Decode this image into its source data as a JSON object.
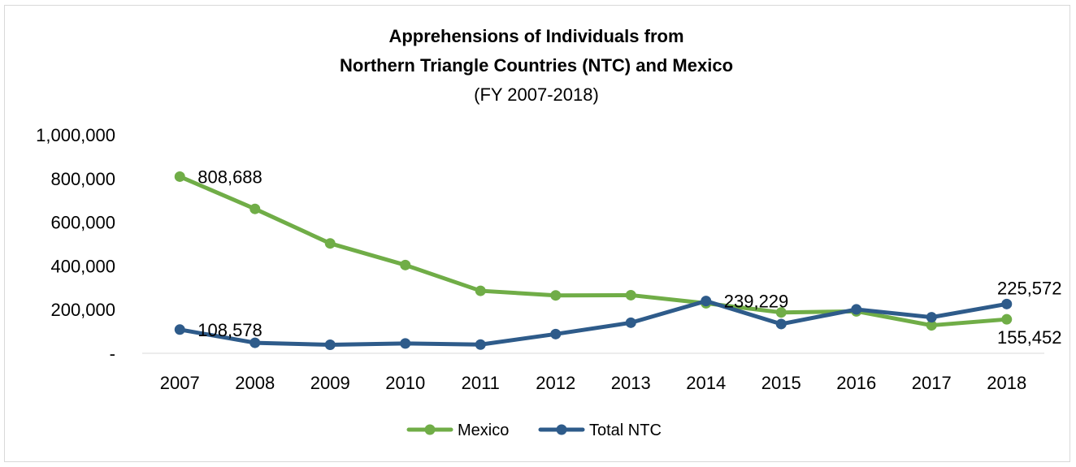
{
  "chart_data": {
    "type": "line",
    "title_line1": "Apprehensions of Individuals from",
    "title_line2": "Northern Triangle Countries (NTC) and Mexico",
    "subtitle": "(FY 2007-2018)",
    "xlabel": "",
    "ylabel": "",
    "ylim": [
      0,
      1000000
    ],
    "grid": false,
    "legend_position": "bottom",
    "categories": [
      "2007",
      "2008",
      "2009",
      "2010",
      "2011",
      "2012",
      "2013",
      "2014",
      "2015",
      "2016",
      "2017",
      "2018"
    ],
    "y_ticks": [
      {
        "value": 0,
        "label": "-"
      },
      {
        "value": 200000,
        "label": "200,000"
      },
      {
        "value": 400000,
        "label": "400,000"
      },
      {
        "value": 600000,
        "label": "600,000"
      },
      {
        "value": 800000,
        "label": "800,000"
      },
      {
        "value": 1000000,
        "label": "1,000,000"
      }
    ],
    "series": [
      {
        "name": "Mexico",
        "color": "#70ad47",
        "values": [
          808688,
          661000,
          503000,
          404000,
          286000,
          265000,
          266000,
          229000,
          187000,
          192000,
          128000,
          155452
        ]
      },
      {
        "name": "Total NTC",
        "color": "#2e5b8a",
        "values": [
          108578,
          48000,
          39000,
          45000,
          40000,
          88000,
          140000,
          239229,
          134000,
          201000,
          165000,
          225572
        ]
      }
    ],
    "data_labels": [
      {
        "series": 0,
        "index": 0,
        "text": "808,688",
        "placement": "right"
      },
      {
        "series": 1,
        "index": 0,
        "text": "108,578",
        "placement": "right"
      },
      {
        "series": 1,
        "index": 7,
        "text": "239,229",
        "placement": "right"
      },
      {
        "series": 1,
        "index": 11,
        "text": "225,572",
        "placement": "above"
      },
      {
        "series": 0,
        "index": 11,
        "text": "155,452",
        "placement": "below"
      }
    ]
  }
}
